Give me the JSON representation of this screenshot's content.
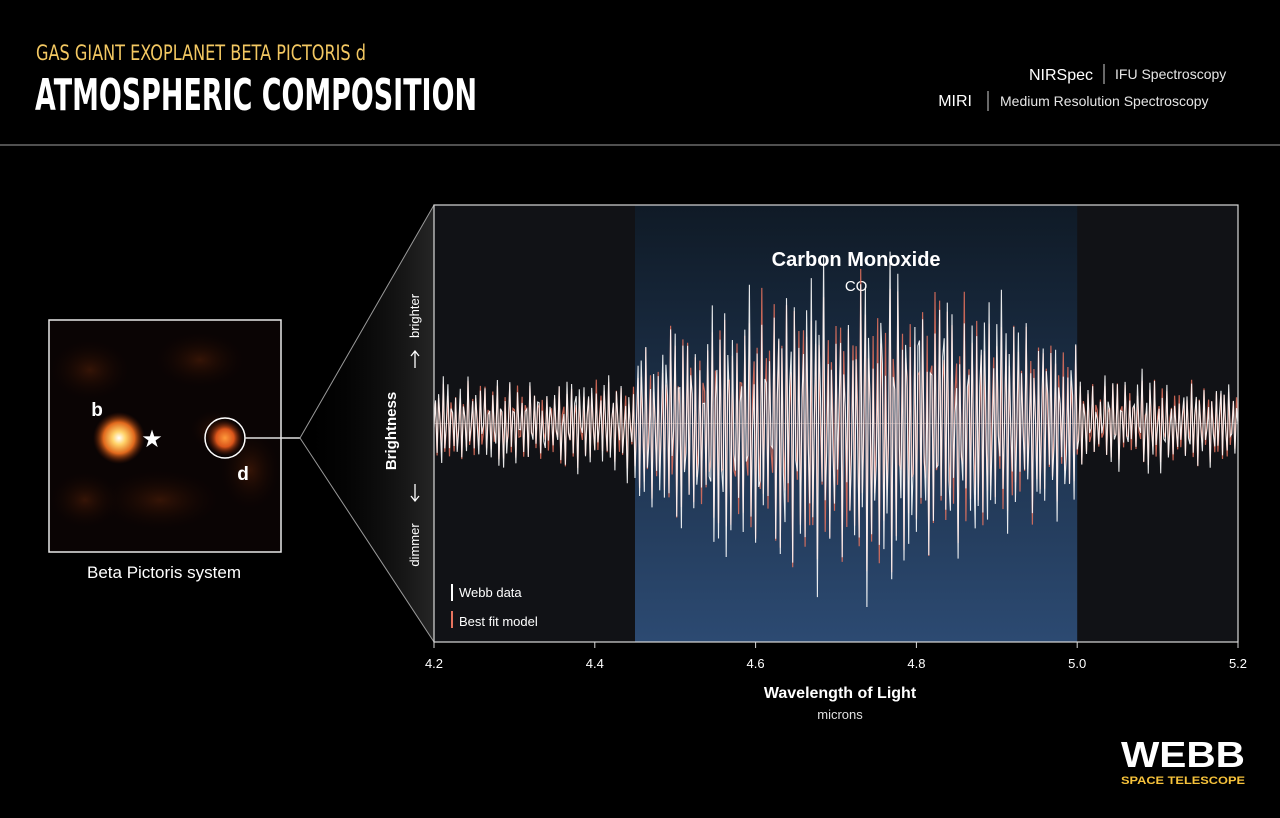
{
  "header": {
    "subtitle": "GAS GIANT EXOPLANET BETA PICTORIS d",
    "title": "ATMOSPHERIC COMPOSITION",
    "instruments": [
      {
        "name": "NIRSpec",
        "mode": "IFU Spectroscopy"
      },
      {
        "name": "MIRI",
        "mode": "Medium Resolution Spectroscopy"
      }
    ]
  },
  "inset": {
    "caption": "Beta Pictoris system",
    "planet_b_label": "b",
    "planet_d_label": "d",
    "star_glyph": "★"
  },
  "colors": {
    "subtitle": "#f3c862",
    "data_line": "#ffffff",
    "model_line": "#e7735e",
    "highlight_band": "#2e4f78",
    "plot_bg": "#111216",
    "webb_accent": "#f6c23b"
  },
  "chart_data": {
    "type": "line",
    "title": "",
    "band_label": "Carbon Monoxide",
    "band_sublabel": "CO",
    "band_range": [
      4.45,
      5.0
    ],
    "xlabel": "Wavelength of Light",
    "xunit": "microns",
    "ylabel": "Brightness",
    "y_up_label": "brighter",
    "y_down_label": "dimmer",
    "xlim": [
      4.2,
      5.2
    ],
    "ylim": [
      -1,
      1
    ],
    "xticks": [
      "4.2",
      "4.4",
      "4.6",
      "4.8",
      "5.0",
      "5.2"
    ],
    "grid": false,
    "legend": "bottom-left",
    "series": [
      {
        "name": "Webb data",
        "color": "#ffffff"
      },
      {
        "name": "Best fit model",
        "color": "#e7735e"
      }
    ]
  },
  "logo": {
    "word": "WEBB",
    "tagline": "SPACE TELESCOPE"
  }
}
